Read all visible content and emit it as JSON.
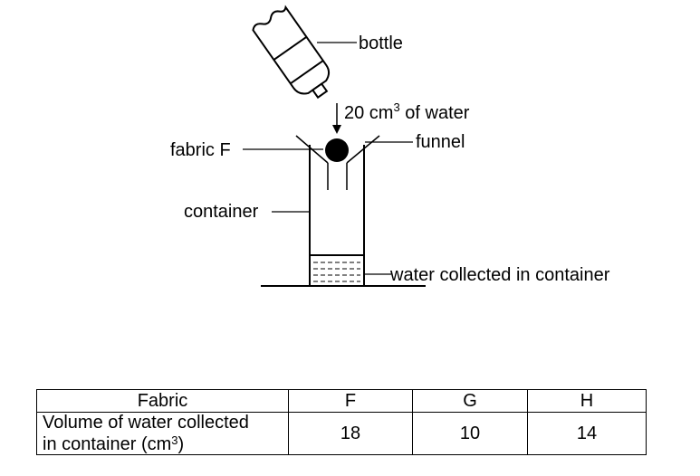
{
  "diagram": {
    "labels": {
      "bottle": "bottle",
      "water_amount": "20 cm",
      "water_amount_sup": "3",
      "water_amount_rest": " of water",
      "funnel": "funnel",
      "fabric": "fabric F",
      "container": "container",
      "water_collected": "water collected in container"
    }
  },
  "table": {
    "header": {
      "label": "Fabric",
      "columns": [
        "F",
        "G",
        "H"
      ]
    },
    "row": {
      "label_line1": "Volume of water collected",
      "label_line2": "in container (cm",
      "label_sup": "3",
      "label_close": ")",
      "values": [
        "18",
        "10",
        "14"
      ]
    }
  }
}
